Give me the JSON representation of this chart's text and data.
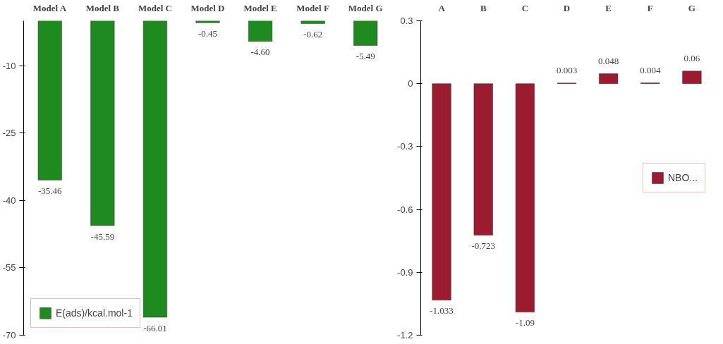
{
  "chart_data": [
    {
      "type": "bar",
      "categories": [
        "Model A",
        "Model B",
        "Model C",
        "Model D",
        "Model E",
        "Model F",
        "Model G"
      ],
      "series": [
        {
          "name": "E(ads)/kcal.mol-1",
          "color": "#1f8a1f",
          "values": [
            -35.46,
            -45.59,
            -66.01,
            -0.45,
            -4.6,
            -0.62,
            -5.49
          ]
        }
      ],
      "value_labels": [
        "-35.46",
        "-45.59",
        "-66.01",
        "-0.45",
        "-4.60",
        "-0.62",
        "-5.49"
      ],
      "ylim": [
        -70,
        0
      ],
      "yticks": [
        -10,
        -25,
        -40,
        -55,
        -70
      ],
      "legend": "bottom left",
      "grid": false
    },
    {
      "type": "bar",
      "categories": [
        "A",
        "B",
        "C",
        "D",
        "E",
        "F",
        "G"
      ],
      "series": [
        {
          "name": "NBO...",
          "color": "#9b1b30",
          "values": [
            -1.033,
            -0.723,
            -1.09,
            0.003,
            0.048,
            0.004,
            0.06
          ]
        }
      ],
      "ylim": [
        -1.2,
        0.3
      ],
      "yticks": [
        0.3,
        0,
        -0.3,
        -0.6,
        -0.9,
        -1.2
      ],
      "data_labels": true,
      "legend": "right",
      "grid": false
    }
  ]
}
